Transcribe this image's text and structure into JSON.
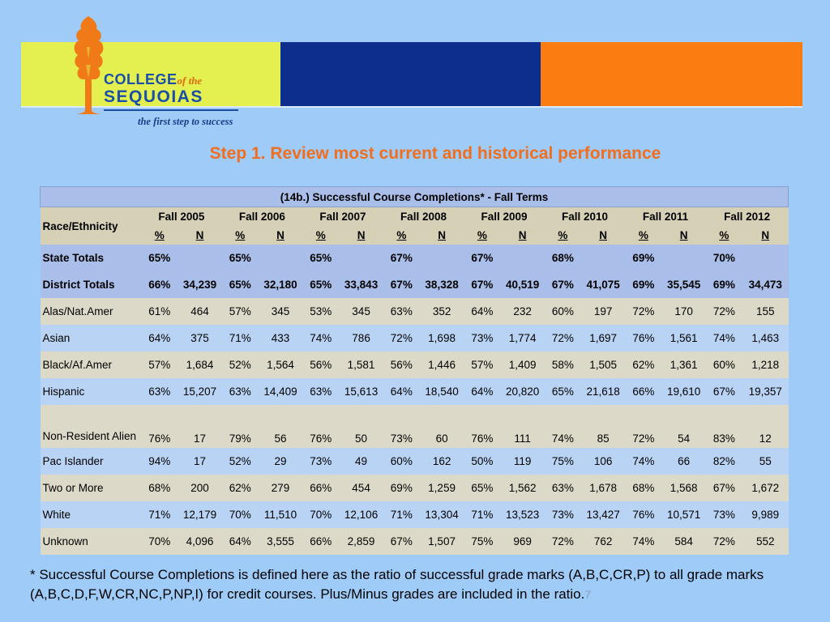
{
  "logo": {
    "college": "COLLEGE",
    "of_the": "of the",
    "sequoias": "SEQUOIAS",
    "tagline": "the first step to success"
  },
  "colors": {
    "banner_yellow": "#e3f04f",
    "banner_blue": "#0d2e8c",
    "banner_orange": "#fb7d12",
    "title": "#f06e1e"
  },
  "title": "Step 1. Review most current and historical performance",
  "table": {
    "caption": "(14b.) Successful Course Completions* - Fall Terms",
    "race_header": "Race/Ethnicity",
    "terms": [
      "Fall 2005",
      "Fall 2006",
      "Fall 2007",
      "Fall 2008",
      "Fall 2009",
      "Fall 2010",
      "Fall 2011",
      "Fall 2012"
    ],
    "pct_label": "%",
    "n_label": "N",
    "rows": [
      {
        "label": "State Totals",
        "cells": [
          "65%",
          "",
          "65%",
          "",
          "65%",
          "",
          "67%",
          "",
          "67%",
          "",
          "68%",
          "",
          "69%",
          "",
          "70%",
          ""
        ]
      },
      {
        "label": "District Totals",
        "cells": [
          "66%",
          "34,239",
          "65%",
          "32,180",
          "65%",
          "33,843",
          "67%",
          "38,328",
          "67%",
          "40,519",
          "67%",
          "41,075",
          "69%",
          "35,545",
          "69%",
          "34,473"
        ]
      },
      {
        "label": "Alas/Nat.Amer",
        "cells": [
          "61%",
          "464",
          "57%",
          "345",
          "53%",
          "345",
          "63%",
          "352",
          "64%",
          "232",
          "60%",
          "197",
          "72%",
          "170",
          "72%",
          "155"
        ]
      },
      {
        "label": "Asian",
        "cells": [
          "64%",
          "375",
          "71%",
          "433",
          "74%",
          "786",
          "72%",
          "1,698",
          "73%",
          "1,774",
          "72%",
          "1,697",
          "76%",
          "1,561",
          "74%",
          "1,463"
        ]
      },
      {
        "label": "Black/Af.Amer",
        "cells": [
          "57%",
          "1,684",
          "52%",
          "1,564",
          "56%",
          "1,581",
          "56%",
          "1,446",
          "57%",
          "1,409",
          "58%",
          "1,505",
          "62%",
          "1,361",
          "60%",
          "1,218"
        ]
      },
      {
        "label": "Hispanic",
        "cells": [
          "63%",
          "15,207",
          "63%",
          "14,409",
          "63%",
          "15,613",
          "64%",
          "18,540",
          "64%",
          "20,820",
          "65%",
          "21,618",
          "66%",
          "19,610",
          "67%",
          "19,357"
        ]
      },
      {
        "label": "Non-Resident Alien",
        "cells": [
          "76%",
          "17",
          "79%",
          "56",
          "76%",
          "50",
          "73%",
          "60",
          "76%",
          "111",
          "74%",
          "85",
          "72%",
          "54",
          "83%",
          "12"
        ]
      },
      {
        "label": "Pac Islander",
        "cells": [
          "94%",
          "17",
          "52%",
          "29",
          "73%",
          "49",
          "60%",
          "162",
          "50%",
          "119",
          "75%",
          "106",
          "74%",
          "66",
          "82%",
          "55"
        ]
      },
      {
        "label": "Two or More",
        "cells": [
          "68%",
          "200",
          "62%",
          "279",
          "66%",
          "454",
          "69%",
          "1,259",
          "65%",
          "1,562",
          "63%",
          "1,678",
          "68%",
          "1,568",
          "67%",
          "1,672"
        ]
      },
      {
        "label": "White",
        "cells": [
          "71%",
          "12,179",
          "70%",
          "11,510",
          "70%",
          "12,106",
          "71%",
          "13,304",
          "71%",
          "13,523",
          "73%",
          "13,427",
          "76%",
          "10,571",
          "73%",
          "9,989"
        ]
      },
      {
        "label": "Unknown",
        "cells": [
          "70%",
          "4,096",
          "64%",
          "3,555",
          "66%",
          "2,859",
          "67%",
          "1,507",
          "75%",
          "969",
          "72%",
          "762",
          "74%",
          "584",
          "72%",
          "552"
        ]
      }
    ]
  },
  "footnote": "* Successful Course Completions is defined here as the ratio of successful grade marks (A,B,C,CR,P) to all grade marks (A,B,C,D,F,W,CR,NC,P,NP,I) for credit courses. Plus/Minus grades are included in the ratio.",
  "page_number": "7"
}
